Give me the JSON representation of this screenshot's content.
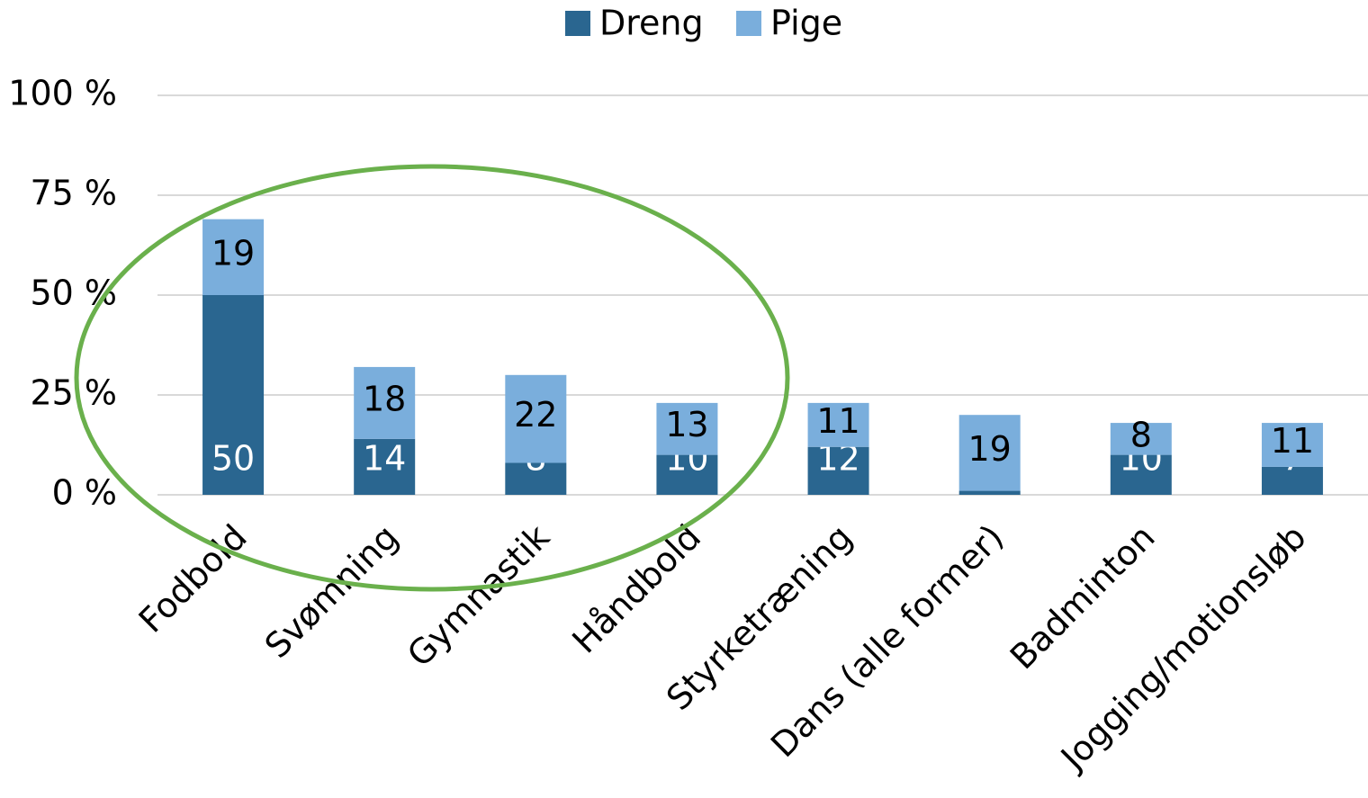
{
  "chart_data": {
    "type": "stacked_bar",
    "categories": [
      "Fodbold",
      "Svømning",
      "Gymnastik",
      "Håndbold",
      "Styrketræning",
      "Dans (alle former)",
      "Badminton",
      "Jogging/motionsløb"
    ],
    "series": [
      {
        "name": "Dreng",
        "color": "#2a6690",
        "values": [
          50,
          14,
          8,
          10,
          12,
          1,
          10,
          7
        ]
      },
      {
        "name": "Pige",
        "color": "#7aaedc",
        "values": [
          19,
          18,
          22,
          13,
          11,
          19,
          8,
          11
        ]
      }
    ],
    "ylim": [
      0,
      100
    ],
    "yticks": [
      {
        "value": 0,
        "label": "0 %"
      },
      {
        "value": 25,
        "label": "25 %"
      },
      {
        "value": 50,
        "label": "50 %"
      },
      {
        "value": 75,
        "label": "75 %"
      },
      {
        "value": 100,
        "label": "100 %"
      }
    ],
    "grid": true,
    "legend": "top"
  }
}
